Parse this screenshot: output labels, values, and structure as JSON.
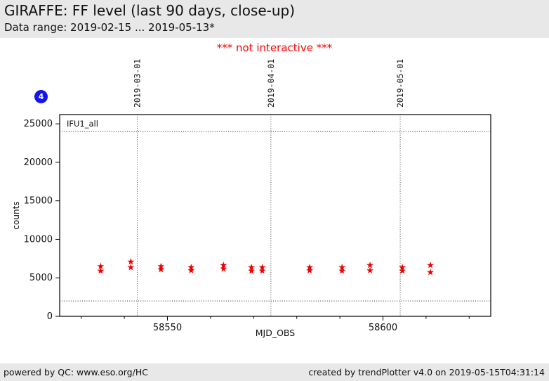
{
  "header": {
    "title": "GIRAFFE: FF level (last 90 days, close-up)",
    "subtitle": "Data range: 2019-02-15 ... 2019-05-13*"
  },
  "warning_text": "*** not interactive ***",
  "badge": {
    "value": "4",
    "color": "#1414ee"
  },
  "footer": {
    "left": "powered by QC: www.eso.org/HC",
    "right": "created by trendPlotter v4.0 on 2019-05-15T04:31:14"
  },
  "chart_data": {
    "type": "scatter",
    "legend": "IFU1_all",
    "xlabel": "MJD_OBS",
    "ylabel": "counts",
    "xlim": [
      58525,
      58625
    ],
    "ylim": [
      0,
      26200
    ],
    "x_major_ticks": [
      58550,
      58600
    ],
    "x_minor_tick_step": 10,
    "y_ticks": [
      0,
      5000,
      10000,
      15000,
      20000,
      25000
    ],
    "threshold_lines": [
      24000,
      2000
    ],
    "date_lines": [
      {
        "label": "2019-03-01",
        "mjd": 58543
      },
      {
        "label": "2019-04-01",
        "mjd": 58574
      },
      {
        "label": "2019-05-01",
        "mjd": 58604
      }
    ],
    "marker": {
      "shape": "star",
      "color": "#ee0000",
      "glyph": "★"
    },
    "grid": false,
    "points": [
      [
        58534.5,
        6550
      ],
      [
        58534.5,
        5950
      ],
      [
        58541.5,
        7100
      ],
      [
        58541.5,
        6400
      ],
      [
        58548.5,
        6550
      ],
      [
        58548.5,
        6100
      ],
      [
        58555.5,
        6400
      ],
      [
        58555.5,
        6000
      ],
      [
        58563.0,
        6650
      ],
      [
        58563.0,
        6200
      ],
      [
        58569.5,
        6400
      ],
      [
        58569.5,
        5950
      ],
      [
        58572.0,
        6400
      ],
      [
        58572.0,
        5950
      ],
      [
        58583.0,
        6400
      ],
      [
        58583.0,
        6000
      ],
      [
        58590.5,
        6400
      ],
      [
        58590.5,
        5950
      ],
      [
        58597.0,
        6650
      ],
      [
        58597.0,
        6000
      ],
      [
        58604.5,
        6400
      ],
      [
        58604.5,
        5950
      ],
      [
        58611.0,
        6650
      ],
      [
        58611.0,
        5750
      ]
    ]
  }
}
